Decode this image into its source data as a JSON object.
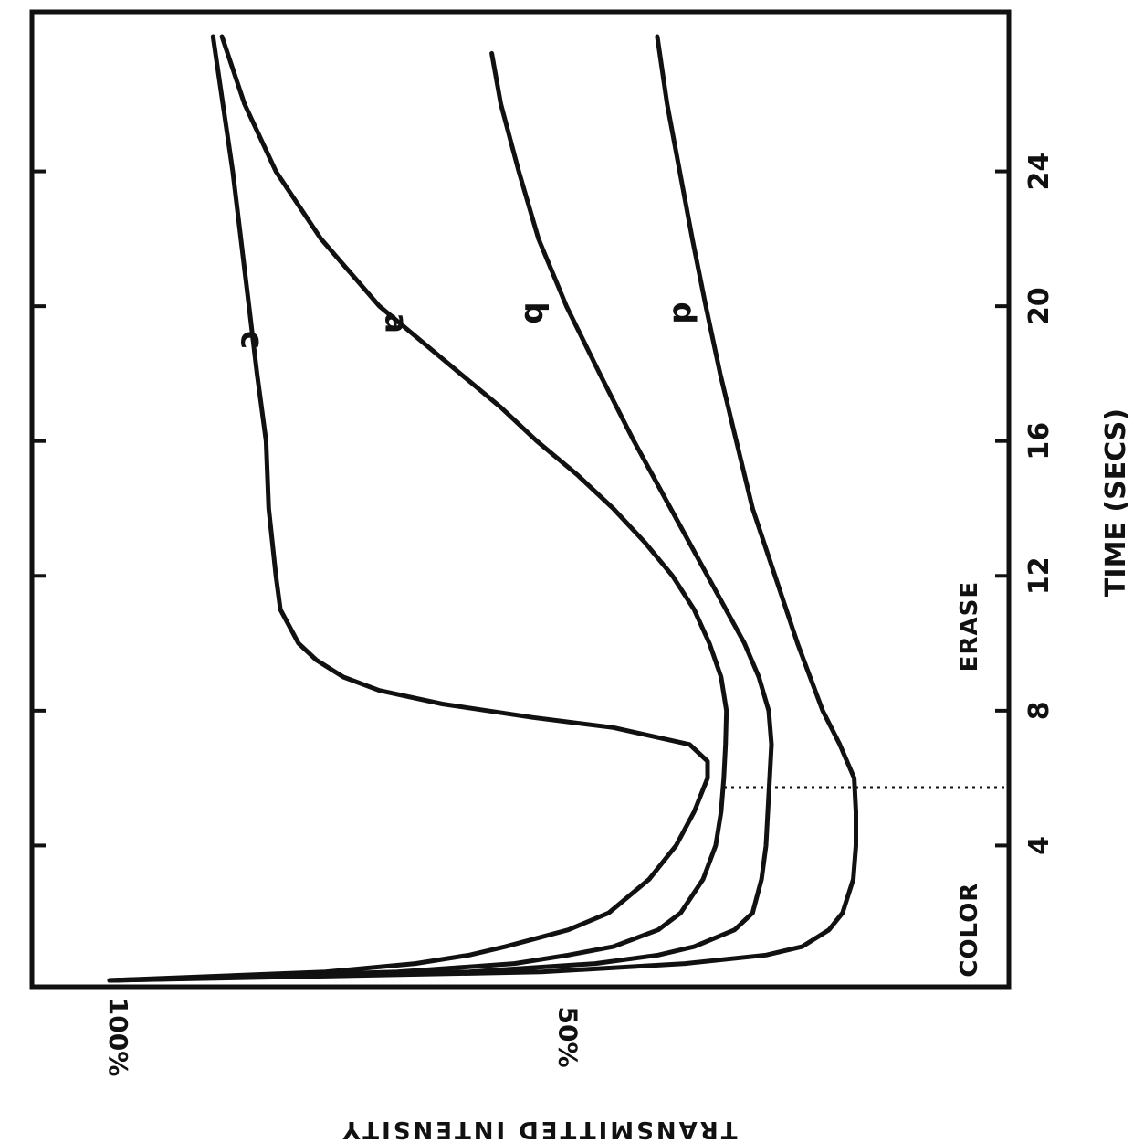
{
  "chart_data": {
    "type": "line",
    "xlabel": "TIME (SECS)",
    "ylabel": "TRANSMITTED INTENSITY",
    "xlim": [
      0,
      28
    ],
    "ylim": [
      0,
      100
    ],
    "x_ticks": [
      4,
      8,
      12,
      16,
      20,
      24
    ],
    "y_ticks": [
      {
        "value": 100,
        "label": "100%"
      },
      {
        "value": 50,
        "label": "50%"
      }
    ],
    "annotations": [
      {
        "text": "COLOR",
        "x": 1.5
      },
      {
        "text": "ERASE",
        "x": 10.5
      }
    ],
    "erase_time": 6,
    "grid": false,
    "series": [
      {
        "name": "c",
        "label_at": [
          19,
          84.5
        ],
        "x": [
          0,
          0.25,
          0.5,
          0.75,
          1,
          1.5,
          2,
          3,
          4,
          5,
          6,
          6.5,
          7,
          7.5,
          7.8,
          8.2,
          8.6,
          9,
          9.5,
          10,
          10.5,
          11,
          12,
          14,
          16,
          18,
          20,
          22,
          24,
          26,
          28
        ],
        "values": [
          100,
          76,
          66,
          60,
          56,
          49,
          44.5,
          40,
          37,
          35,
          33.5,
          33.5,
          35.5,
          44,
          53,
          63,
          70,
          74,
          77,
          79,
          80,
          81,
          81.5,
          82.3,
          82.6,
          83.6,
          84.5,
          85.4,
          86.3,
          87.4,
          88.5
        ]
      },
      {
        "name": "a",
        "label_at": [
          19.5,
          68.5
        ],
        "x": [
          0,
          0.25,
          0.5,
          0.75,
          1,
          1.5,
          2,
          3,
          4,
          5,
          6,
          7,
          8,
          9,
          10,
          11,
          12,
          13,
          14,
          15,
          16,
          17,
          18,
          19,
          20,
          22,
          24,
          26,
          28
        ],
        "values": [
          100,
          68,
          55,
          49,
          44,
          39,
          36.5,
          34,
          32.6,
          32,
          31.7,
          31.5,
          31.4,
          32,
          33.3,
          35,
          37.4,
          40.5,
          44,
          48,
          52.5,
          56.5,
          61,
          65.5,
          70,
          76.5,
          81.5,
          85,
          87.5
        ]
      },
      {
        "name": "b",
        "label_at": [
          19.8,
          53
        ],
        "x": [
          0,
          0.25,
          0.5,
          0.75,
          1,
          1.5,
          2,
          3,
          4,
          5,
          6,
          7,
          8,
          9,
          10,
          12,
          14,
          16,
          18,
          20,
          22,
          24,
          26,
          27.5
        ],
        "values": [
          100,
          60,
          46,
          39,
          35,
          30.5,
          28.5,
          27.5,
          27,
          26.8,
          26.6,
          26.4,
          26.7,
          27.8,
          29.4,
          33.5,
          37.6,
          41.7,
          45.5,
          49.2,
          52.3,
          54.5,
          56.5,
          57.5
        ]
      },
      {
        "name": "d",
        "label_at": [
          19.8,
          36.5
        ],
        "x": [
          0,
          0.25,
          0.5,
          0.75,
          1,
          1.5,
          2,
          3,
          4,
          5,
          6,
          7,
          8,
          10,
          12,
          14,
          16,
          18,
          20,
          22,
          24,
          26,
          28
        ],
        "values": [
          100,
          52,
          36,
          27,
          23,
          20,
          18.5,
          17.3,
          17,
          17,
          17.2,
          18.8,
          20.7,
          23.5,
          26,
          28.5,
          30.3,
          32.1,
          33.7,
          35.2,
          36.6,
          38,
          39.1
        ]
      }
    ]
  }
}
